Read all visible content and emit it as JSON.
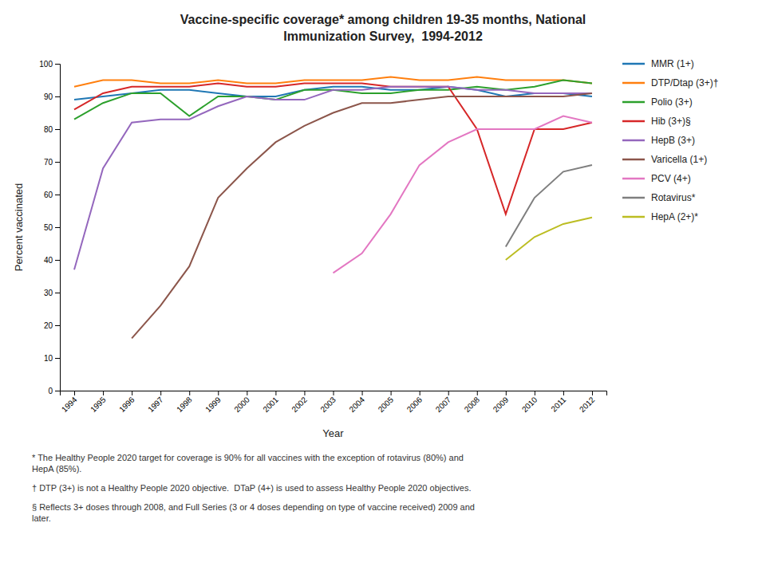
{
  "chart_data": {
    "type": "line",
    "title": "Vaccine-specific coverage* among children 19-35 months, National\nImmunization Survey,  1994-2012",
    "x_label": "Year",
    "y_label": "Percent vaccinated",
    "x": [
      1994,
      1995,
      1996,
      1997,
      1998,
      1999,
      2000,
      2001,
      2002,
      2003,
      2004,
      2005,
      2006,
      2007,
      2008,
      2009,
      2010,
      2011,
      2012
    ],
    "xlim": [
      1993.5,
      2012.5
    ],
    "xticks": [
      1994,
      1995,
      1996,
      1997,
      1998,
      1999,
      2000,
      2001,
      2002,
      2003,
      2004,
      2005,
      2006,
      2007,
      2008,
      2009,
      2010,
      2011,
      2012
    ],
    "ylim": [
      0,
      100
    ],
    "yticks": [
      0,
      10,
      20,
      30,
      40,
      50,
      60,
      70,
      80,
      90,
      100
    ],
    "grid": false,
    "legend": "right",
    "series": [
      {
        "name": "MMR (1+)",
        "values": [
          89,
          90,
          91,
          92,
          92,
          91,
          90,
          90,
          92,
          93,
          93,
          92,
          92,
          93,
          92,
          90,
          91,
          91,
          90
        ]
      },
      {
        "name": "DTP/Dtap (3+)†",
        "values": [
          93,
          95,
          95,
          94,
          94,
          95,
          94,
          94,
          95,
          95,
          95,
          96,
          95,
          95,
          96,
          95,
          95,
          95,
          94
        ]
      },
      {
        "name": "Polio (3+)",
        "values": [
          83,
          88,
          91,
          91,
          84,
          90,
          90,
          89,
          92,
          92,
          91,
          91,
          92,
          92,
          93,
          92,
          93,
          95,
          94
        ]
      },
      {
        "name": "Hib (3+)§",
        "values": [
          86,
          91,
          93,
          93,
          93,
          94,
          93,
          93,
          94,
          94,
          94,
          93,
          93,
          93,
          80,
          54,
          80,
          80,
          82
        ]
      },
      {
        "name": "HepB (3+)",
        "values": [
          37,
          68,
          82,
          83,
          83,
          87,
          90,
          89,
          89,
          92,
          92,
          93,
          93,
          93,
          92,
          92,
          91,
          91,
          91
        ]
      },
      {
        "name": "Varicella (1+)",
        "values": [
          null,
          null,
          16,
          26,
          38,
          59,
          68,
          76,
          81,
          85,
          88,
          88,
          89,
          90,
          90,
          90,
          90,
          90,
          91
        ]
      },
      {
        "name": "PCV (4+)",
        "values": [
          null,
          null,
          null,
          null,
          null,
          null,
          null,
          null,
          null,
          36,
          42,
          54,
          69,
          76,
          80,
          80,
          80,
          84,
          82
        ]
      },
      {
        "name": "Rotavirus*",
        "values": [
          null,
          null,
          null,
          null,
          null,
          null,
          null,
          null,
          null,
          null,
          null,
          null,
          null,
          null,
          null,
          44,
          59,
          67,
          69
        ]
      },
      {
        "name": "HepA (2+)*",
        "values": [
          null,
          null,
          null,
          null,
          null,
          null,
          null,
          null,
          null,
          null,
          null,
          null,
          null,
          null,
          null,
          40,
          47,
          51,
          53
        ]
      }
    ],
    "annotations": [
      "* The Healthy People 2020 target for coverage is 90% for all vaccines with the exception of rotavirus (80%) and\nHepA (85%).",
      "† DTP (3+) is not a Healthy People 2020 objective.  DTaP (4+) is used to assess Healthy People 2020 objectives.",
      "§ Reflects 3+ doses through 2008, and Full Series (3 or 4 doses depending on type of vaccine received) 2009 and\nlater."
    ]
  }
}
